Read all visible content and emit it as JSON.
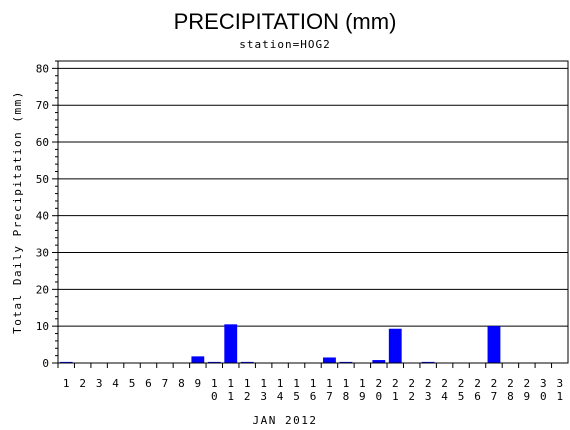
{
  "chart_data": {
    "type": "bar",
    "title": "PRECIPITATION (mm)",
    "subtitle": "station=HOG2",
    "xlabel": "JAN 2012",
    "ylabel": "Total Daily Precipitation (mm)",
    "categories": [
      "1",
      "2",
      "3",
      "4",
      "5",
      "6",
      "7",
      "8",
      "9",
      "10",
      "11",
      "12",
      "13",
      "14",
      "15",
      "16",
      "17",
      "18",
      "19",
      "20",
      "21",
      "22",
      "23",
      "24",
      "25",
      "26",
      "27",
      "28",
      "29",
      "30",
      "31"
    ],
    "values": [
      0.3,
      0,
      0,
      0,
      0,
      0,
      0,
      0,
      1.8,
      0.3,
      10.5,
      0.3,
      0,
      0,
      0,
      0,
      1.5,
      0.3,
      0,
      0.8,
      9.3,
      0,
      0.3,
      0,
      0,
      0,
      10.0,
      0,
      0,
      0,
      0
    ],
    "ylim": [
      0,
      82
    ],
    "yticks": [
      0,
      10,
      20,
      30,
      40,
      50,
      60,
      70,
      80
    ],
    "grid": true,
    "colors": {
      "bar": "#0000ff",
      "axis": "#000000",
      "grid": "#000000"
    }
  }
}
